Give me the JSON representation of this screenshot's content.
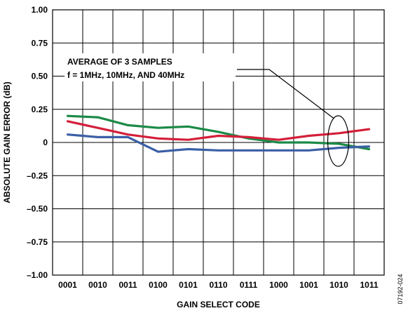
{
  "chart_data": {
    "type": "line",
    "xlabel": "GAIN SELECT CODE",
    "ylabel": "ABSOLUTE GAIN ERROR (dB)",
    "categories": [
      "0001",
      "0010",
      "0011",
      "0100",
      "0101",
      "0110",
      "0111",
      "1000",
      "1001",
      "1010",
      "1011"
    ],
    "y_tick_labels": [
      "1.00",
      "0.75",
      "0.50",
      "0.25",
      "0",
      "–0.25",
      "–0.50",
      "–0.75",
      "–1.00"
    ],
    "y_tick_values": [
      1.0,
      0.75,
      0.5,
      0.25,
      0,
      -0.25,
      -0.5,
      -0.75,
      -1.0
    ],
    "ylim": [
      -1.0,
      1.0
    ],
    "grid": true,
    "annotation": {
      "line1": "AVERAGE OF 3 SAMPLES",
      "line2": "f = 1MHz, 10MHz, AND 40MHz",
      "target_x": 9.0,
      "target_y": 0.0
    },
    "figure_id": "07192-024",
    "series": [
      {
        "color": "#1b8a47",
        "x": [
          0,
          1,
          2,
          3,
          4,
          5,
          6,
          7,
          8,
          9,
          10
        ],
        "values": [
          0.2,
          0.19,
          0.13,
          0.11,
          0.12,
          0.08,
          0.03,
          0.0,
          0.0,
          -0.01,
          -0.05
        ]
      },
      {
        "color": "#d41f3a",
        "x": [
          0,
          1,
          2,
          3,
          4,
          5,
          6,
          7,
          8,
          9,
          10
        ],
        "values": [
          0.16,
          0.11,
          0.06,
          0.03,
          0.02,
          0.05,
          0.04,
          0.02,
          0.05,
          0.07,
          0.1
        ]
      },
      {
        "color": "#3b5fa6",
        "x": [
          0,
          0.5,
          1,
          2,
          3,
          4,
          5,
          6,
          7,
          8,
          9,
          10
        ],
        "values": [
          0.06,
          0.05,
          0.04,
          0.04,
          -0.07,
          -0.05,
          -0.06,
          -0.06,
          -0.06,
          -0.06,
          -0.04,
          -0.03
        ]
      }
    ]
  }
}
